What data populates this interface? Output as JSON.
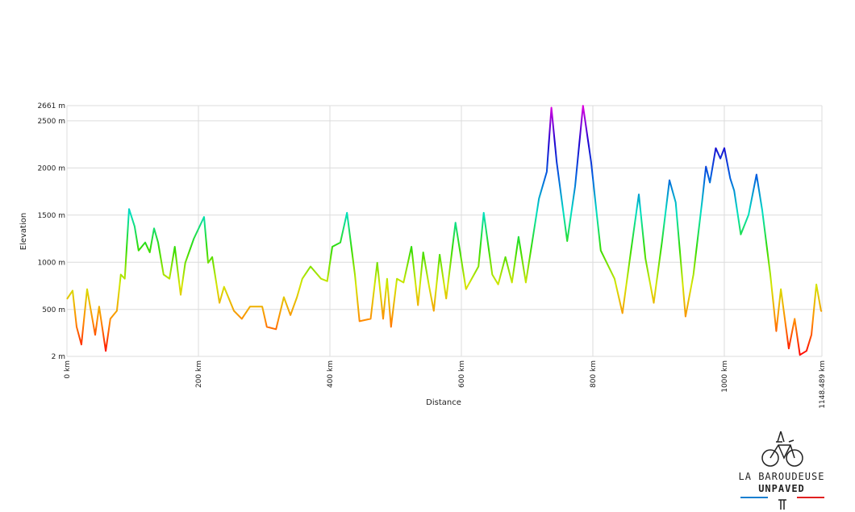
{
  "chart_data": {
    "type": "line",
    "xlabel": "Distance",
    "ylabel": "Elevation",
    "x": [
      0,
      8.6,
      14.7,
      22,
      30.7,
      43,
      49,
      59,
      66,
      76,
      82,
      88,
      94.5,
      103,
      109,
      119,
      126,
      132.5,
      138.7,
      147,
      156,
      164,
      173,
      180,
      193,
      208.6,
      214.7,
      221,
      232,
      239,
      254,
      266,
      278.5,
      297,
      304,
      318,
      330,
      340,
      350,
      358,
      370.5,
      386.5,
      396,
      403.7,
      416,
      426,
      438,
      445,
      462,
      472,
      481,
      487,
      493,
      502,
      512,
      524,
      534,
      542,
      551,
      558,
      567,
      577,
      591,
      607,
      626,
      634,
      647,
      656,
      667,
      677,
      687,
      698,
      718,
      730,
      737,
      745,
      761,
      773,
      785,
      797.5,
      806,
      812,
      833,
      845,
      858,
      870,
      880,
      892.6,
      905,
      916.6,
      926,
      941,
      953,
      966,
      972,
      978,
      987,
      994,
      1000,
      1009,
      1015,
      1025,
      1037,
      1049,
      1057.7,
      1070,
      1079,
      1086,
      1098,
      1107,
      1115,
      1125,
      1132.5,
      1140,
      1147.2,
      1148.489
    ],
    "y": [
      610,
      700,
      315,
      128,
      715,
      230,
      530,
      60,
      400,
      485,
      870,
      825,
      1565,
      1380,
      1125,
      1210,
      1105,
      1360,
      1210,
      870,
      825,
      1165,
      655,
      995,
      1250,
      1480,
      995,
      1055,
      570,
      740,
      485,
      400,
      530,
      530,
      315,
      290,
      630,
      440,
      630,
      825,
      955,
      825,
      800,
      1165,
      1210,
      1525,
      870,
      375,
      400,
      995,
      400,
      825,
      315,
      825,
      785,
      1165,
      545,
      1105,
      740,
      485,
      1080,
      615,
      1420,
      715,
      955,
      1525,
      870,
      765,
      1055,
      785,
      1270,
      785,
      1675,
      1960,
      2640,
      2060,
      1225,
      1805,
      2660,
      2060,
      1505,
      1125,
      825,
      460,
      1125,
      1720,
      1040,
      570,
      1210,
      1870,
      1635,
      425,
      870,
      1635,
      2015,
      1845,
      2210,
      2100,
      2210,
      1890,
      1760,
      1295,
      1505,
      1930,
      1550,
      870,
      270,
      715,
      85,
      400,
      17,
      60,
      230,
      765,
      485,
      480
    ],
    "xlim": [
      0,
      1148.489
    ],
    "ylim": [
      2,
      2661
    ],
    "xticks": [
      {
        "value": 0,
        "label": "0 km"
      },
      {
        "value": 200,
        "label": "200 km"
      },
      {
        "value": 400,
        "label": "400 km"
      },
      {
        "value": 600,
        "label": "600 km"
      },
      {
        "value": 800,
        "label": "800 km"
      },
      {
        "value": 1000,
        "label": "1000 km"
      },
      {
        "value": 1148.489,
        "label": "1148.489 km"
      }
    ],
    "yticks": [
      {
        "value": 2,
        "label": "2 m"
      },
      {
        "value": 500,
        "label": "500 m"
      },
      {
        "value": 1000,
        "label": "1000 m"
      },
      {
        "value": 1500,
        "label": "1500 m"
      },
      {
        "value": 2000,
        "label": "2000 m"
      },
      {
        "value": 2500,
        "label": "2500 m"
      },
      {
        "value": 2661,
        "label": "2661 m"
      }
    ],
    "grid": true,
    "colors": [
      "#ff0000",
      "#ff8c00",
      "#d4e600",
      "#33dd00",
      "#00e0c0",
      "#0060e0",
      "#2000d0",
      "#e000e0"
    ]
  },
  "logo": {
    "line1": "LA BAROUDEUSE",
    "line2": "UNPAVED"
  }
}
